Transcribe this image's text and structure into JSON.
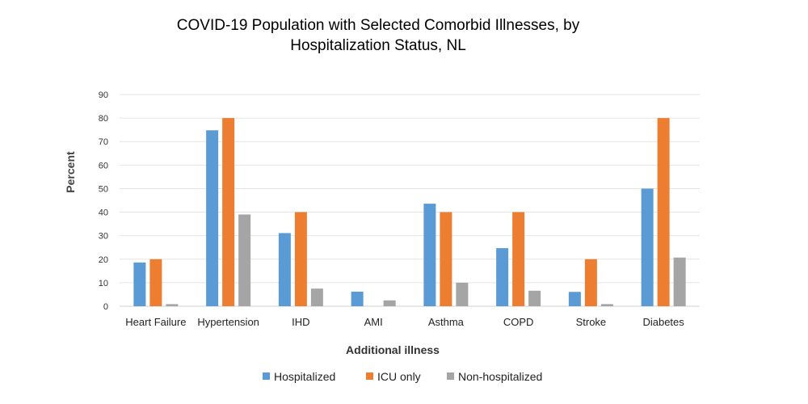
{
  "chart_data": {
    "type": "bar",
    "title_line1": "COVID-19 Population with Selected Comorbid Illnesses, by",
    "title_line2": "Hospitalization Status, NL",
    "xlabel": "Additional  illness",
    "ylabel": "Percent",
    "ylim": [
      0,
      90
    ],
    "yticks": [
      0,
      10,
      20,
      30,
      40,
      50,
      60,
      70,
      80,
      90
    ],
    "grid": true,
    "legend_position": "bottom",
    "categories": [
      "Heart Failure",
      "Hypertension",
      "IHD",
      "AMI",
      "Asthma",
      "COPD",
      "Stroke",
      "Diabetes"
    ],
    "series": [
      {
        "name": "Hospitalized",
        "color": "#5b9bd5",
        "values": [
          18.6,
          74.8,
          31.1,
          6.2,
          43.6,
          24.7,
          6.1,
          50
        ]
      },
      {
        "name": "ICU only",
        "color": "#ed7d31",
        "values": [
          20,
          80,
          40,
          0,
          40,
          40,
          20,
          80
        ]
      },
      {
        "name": "Non-hospitalized",
        "color": "#a5a5a5",
        "values": [
          0.9,
          39,
          7.5,
          2.5,
          10,
          6.6,
          0.9,
          20.7
        ]
      }
    ]
  }
}
